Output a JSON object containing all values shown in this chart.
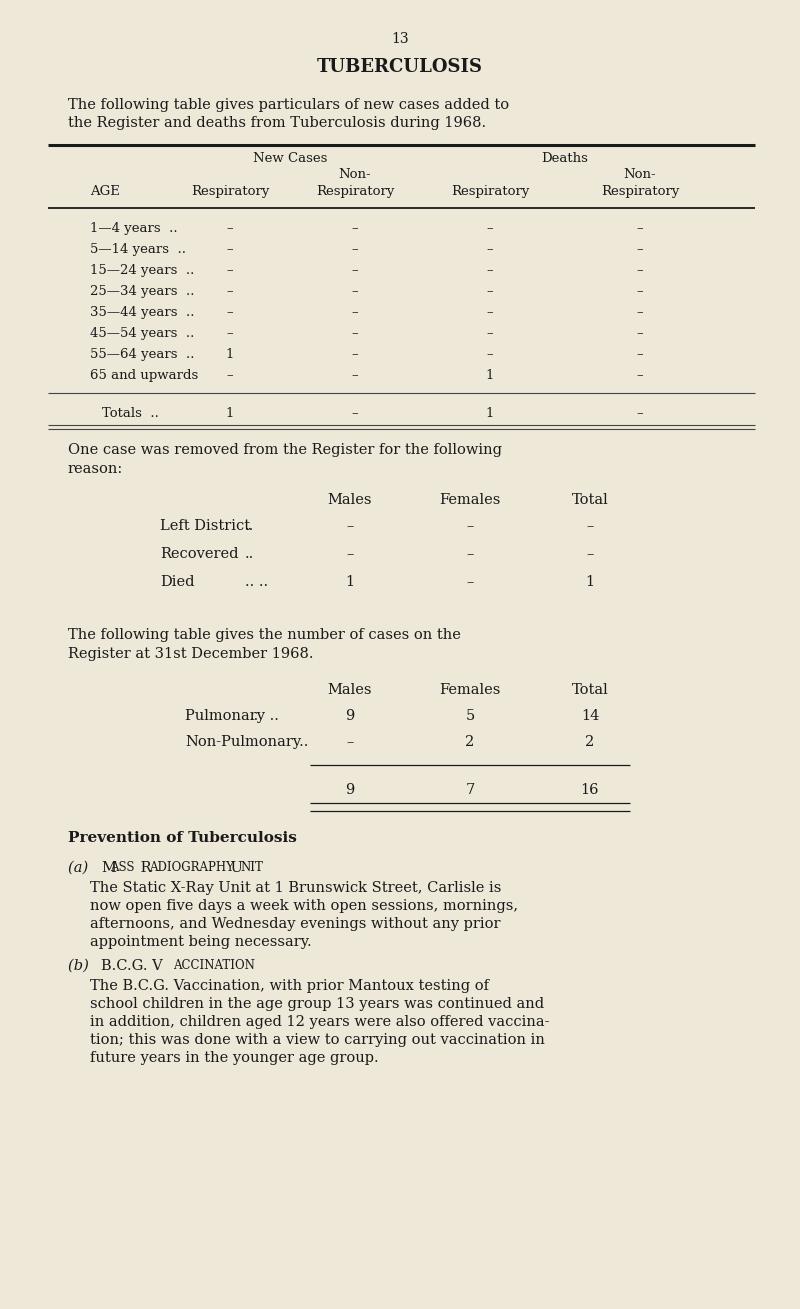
{
  "bg_color": "#ede8d8",
  "text_color": "#1a1a1a",
  "page_number": "13",
  "title": "TUBERCULOSIS",
  "intro_line1": "The following table gives particulars of new cases added to",
  "intro_line2": "the Register and deaths from Tuberculosis during 1968.",
  "t1_h1": "New Cases",
  "t1_h2": "Deaths",
  "t1_col_age": "AGE",
  "t1_col_resp1": "Respiratory",
  "t1_col_nresp1": "Non-",
  "t1_col_resp2": "Respiratory",
  "t1_col_nresp2": "Non-",
  "t1_col_resp3": "Respiratory",
  "t1_col_nresp3": "Respiratory",
  "t1_rows": [
    [
      "1—4 years  ..",
      "–",
      "–",
      "–",
      "–"
    ],
    [
      "5—14 years  ..",
      "–",
      "–",
      "–",
      "–"
    ],
    [
      "15—24 years  ..",
      "–",
      "–",
      "–",
      "–"
    ],
    [
      "25—34 years  ..",
      "–",
      "–",
      "–",
      "–"
    ],
    [
      "35—44 years  ..",
      "–",
      "–",
      "–",
      "–"
    ],
    [
      "45—54 years  ..",
      "–",
      "–",
      "–",
      "–"
    ],
    [
      "55—64 years  ..",
      "1",
      "–",
      "–",
      "–"
    ],
    [
      "65 and upwards",
      "–",
      "–",
      "1",
      "–"
    ]
  ],
  "t1_totals": [
    "Totals  ..",
    "1",
    "–",
    "1",
    "–"
  ],
  "removed_line1": "One case was removed from the Register for the following",
  "removed_line2": "reason:",
  "t2_col_males": "Males",
  "t2_col_females": "Females",
  "t2_col_total": "Total",
  "t2_rows": [
    [
      "Left District",
      "..",
      "–",
      "–",
      "–"
    ],
    [
      "Recovered",
      "..",
      "–",
      "–",
      "–"
    ],
    [
      "Died",
      ".. ..",
      "1",
      "–",
      "1"
    ]
  ],
  "reg_line1": "The following table gives the number of cases on the",
  "reg_line2": "Register at 31st December 1968.",
  "t3_col_males": "Males",
  "t3_col_females": "Females",
  "t3_col_total": "Total",
  "t3_rows": [
    [
      "Pulmonary ..",
      "..",
      "9",
      "5",
      "14"
    ],
    [
      "Non-Pulmonary..",
      "",
      "–",
      "2",
      "2"
    ]
  ],
  "t3_totals": [
    "9",
    "7",
    "16"
  ],
  "prev_heading": "Prevention of Tuberculosis",
  "sa_heading": "(α) Mᴀss Rᴀᴅɯᴏɢrᴀpʜʏ Uɴɯᴛ",
  "sa_heading_plain": "(a) Mass Radiography Unit",
  "sa_text_lines": [
    "The Static X-Ray Unit at 1 Brunswick Street, Carlisle is",
    "now open five days a week with open sessions, mornings,",
    "afternoons, and Wednesday evenings without any prior",
    "appointment being necessary."
  ],
  "sb_heading_plain": "(b) B.C.G. Vaccination",
  "sb_text_lines": [
    "The B.C.G. Vaccination, with prior Mantoux testing of",
    "school children in the age group 13 years was continued and",
    "in addition, children aged 12 years were also offered vaccina-",
    "tion; this was done with a view to carrying out vaccination in",
    "future years in the younger age group."
  ]
}
